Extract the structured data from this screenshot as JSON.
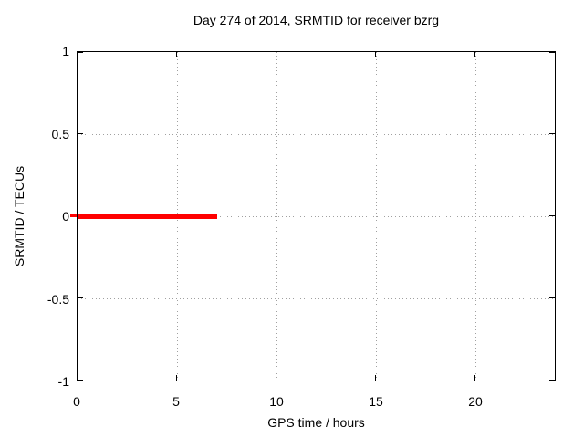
{
  "chart_data": {
    "type": "line",
    "title": "Day 274 of 2014, SRMTID for receiver bzrg",
    "xlabel": "GPS time / hours",
    "ylabel": "SRMTID / TECUs",
    "xlim": [
      0,
      24
    ],
    "ylim": [
      -1,
      1
    ],
    "xticks": [
      0,
      5,
      10,
      15,
      20
    ],
    "yticks": [
      1,
      0.5,
      0,
      -0.5,
      -1
    ],
    "xtick_labels": [
      "0",
      "5",
      "10",
      "15",
      "20"
    ],
    "ytick_labels": [
      "1",
      "0.5",
      "0",
      "-0.5",
      "-1"
    ],
    "grid": true,
    "grid_style": "dotted",
    "legend_position": "none",
    "series": [
      {
        "name": "SRMTID",
        "color": "#ff0000",
        "style": "thick solid horizontal line",
        "x": [
          0,
          7
        ],
        "y": [
          0,
          0
        ],
        "note": "constant value 0 TECUs from hour 0 to hour 7; no data plotted after hour 7; small red cap visible just outside left border at y=0"
      }
    ]
  },
  "colors": {
    "background": "#ffffff",
    "border": "#000000",
    "grid": "#a0a0a0",
    "text": "#000000",
    "series": "#ff0000"
  }
}
